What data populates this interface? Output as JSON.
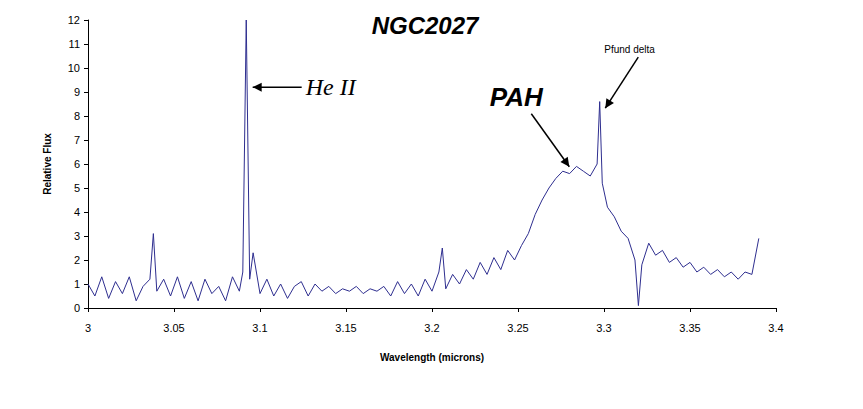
{
  "chart_data": {
    "type": "line",
    "title": "NGC2027",
    "x_label": "Wavelength (microns)",
    "y_label": "Relative Flux",
    "color": "#2e2e8f",
    "grid": false,
    "xlim": [
      3,
      3.4
    ],
    "xticks": [
      3,
      3.05,
      3.1,
      3.15,
      3.2,
      3.25,
      3.3,
      3.35,
      3.4
    ],
    "ylim": [
      0,
      12
    ],
    "yticks": [
      0,
      1,
      2,
      3,
      4,
      5,
      6,
      7,
      8,
      9,
      10,
      11,
      12
    ],
    "x": [
      3.0,
      3.004,
      3.008,
      3.012,
      3.016,
      3.02,
      3.024,
      3.028,
      3.032,
      3.036,
      3.038,
      3.04,
      3.044,
      3.048,
      3.052,
      3.056,
      3.06,
      3.064,
      3.068,
      3.072,
      3.076,
      3.08,
      3.084,
      3.088,
      3.09,
      3.092,
      3.094,
      3.096,
      3.1,
      3.104,
      3.108,
      3.112,
      3.116,
      3.12,
      3.124,
      3.128,
      3.132,
      3.136,
      3.14,
      3.144,
      3.148,
      3.152,
      3.156,
      3.16,
      3.164,
      3.168,
      3.172,
      3.176,
      3.18,
      3.184,
      3.188,
      3.192,
      3.196,
      3.2,
      3.204,
      3.206,
      3.208,
      3.212,
      3.216,
      3.22,
      3.224,
      3.228,
      3.232,
      3.236,
      3.24,
      3.244,
      3.248,
      3.252,
      3.256,
      3.26,
      3.264,
      3.268,
      3.272,
      3.276,
      3.28,
      3.284,
      3.288,
      3.292,
      3.296,
      3.2975,
      3.299,
      3.302,
      3.306,
      3.31,
      3.314,
      3.318,
      3.32,
      3.322,
      3.326,
      3.33,
      3.334,
      3.338,
      3.342,
      3.346,
      3.35,
      3.354,
      3.358,
      3.362,
      3.366,
      3.37,
      3.374,
      3.378,
      3.382,
      3.386,
      3.39
    ],
    "values": [
      1.0,
      0.5,
      1.3,
      0.4,
      1.1,
      0.6,
      1.3,
      0.3,
      0.9,
      1.2,
      3.1,
      0.7,
      1.2,
      0.5,
      1.3,
      0.4,
      1.1,
      0.3,
      1.2,
      0.6,
      0.9,
      0.3,
      1.3,
      0.7,
      1.5,
      12.0,
      1.2,
      2.3,
      0.6,
      1.2,
      0.5,
      1.0,
      0.4,
      0.9,
      1.1,
      0.5,
      1.0,
      0.7,
      0.9,
      0.6,
      0.8,
      0.7,
      0.9,
      0.6,
      0.8,
      0.7,
      0.9,
      0.5,
      1.1,
      0.6,
      1.0,
      0.5,
      1.2,
      0.7,
      1.5,
      2.5,
      0.8,
      1.4,
      1.0,
      1.6,
      1.2,
      1.9,
      1.4,
      2.1,
      1.6,
      2.4,
      2.0,
      2.6,
      3.1,
      3.9,
      4.5,
      5.0,
      5.4,
      5.7,
      5.6,
      5.9,
      5.7,
      5.5,
      6.0,
      8.6,
      5.2,
      4.2,
      3.8,
      3.2,
      2.9,
      2.0,
      0.1,
      1.8,
      2.7,
      2.2,
      2.4,
      1.9,
      2.1,
      1.7,
      1.9,
      1.5,
      1.7,
      1.4,
      1.6,
      1.3,
      1.5,
      1.2,
      1.5,
      1.4,
      2.9
    ],
    "annotations": [
      {
        "text": "He II",
        "x": 3.094,
        "y": 9.2
      },
      {
        "text": "PAH",
        "x": 3.281,
        "y": 5.8
      },
      {
        "text": "Pfund delta",
        "x": 3.299,
        "y": 8.2
      }
    ]
  }
}
